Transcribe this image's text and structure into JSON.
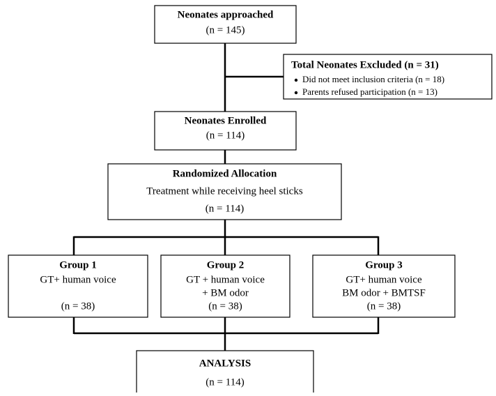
{
  "nodes": [
    {
      "title": "Neonates approached",
      "lines": [
        "(n = 145)"
      ]
    },
    {
      "title": "Neonates Enrolled",
      "lines": [
        "(n = 114)"
      ]
    },
    {
      "title": "Randomized Allocation",
      "lines": [
        "Treatment while receiving heel sticks",
        "(n = 114)"
      ]
    },
    {
      "title": "Group 1",
      "lines": [
        "GT+ human voice",
        "(n = 38)"
      ]
    },
    {
      "title": "Group 2",
      "lines": [
        "GT + human voice",
        "+ BM odor",
        "(n = 38)"
      ]
    },
    {
      "title": "Group 3",
      "lines": [
        "GT+ human voice",
        "BM odor + BMTSF",
        "(n = 38)"
      ]
    },
    {
      "title": "ANALYSIS",
      "lines": [
        "(n = 114)"
      ]
    }
  ],
  "exclusion": {
    "title": "Total Neonates Excluded (n = 31)",
    "bullets": [
      "Did not meet inclusion criteria (n = 18)",
      "Parents refused participation (n = 13)"
    ]
  }
}
